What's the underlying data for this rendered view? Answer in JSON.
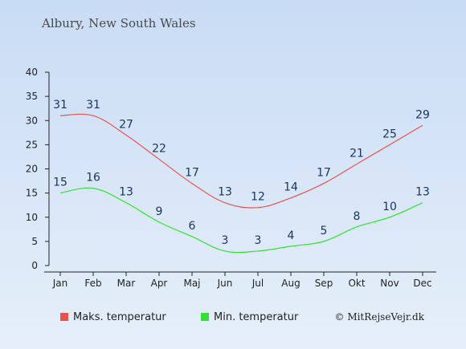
{
  "title": "Albury, New South Wales",
  "credit": "© MitRejseVejr.dk",
  "colors": {
    "max": "#e8534f",
    "min": "#33e033",
    "label": "#1a3560",
    "axis": "#222222"
  },
  "chart_data": {
    "type": "line",
    "title": "Albury, New South Wales",
    "categories": [
      "Jan",
      "Feb",
      "Mar",
      "Apr",
      "Maj",
      "Jun",
      "Jul",
      "Aug",
      "Sep",
      "Okt",
      "Nov",
      "Dec"
    ],
    "yticks": [
      "0",
      "5",
      "10",
      "15",
      "20",
      "25",
      "30",
      "35",
      "40"
    ],
    "ylim": [
      0,
      40
    ],
    "grid": false,
    "legend_position": "bottom-left",
    "series": [
      {
        "name": "Maks. temperatur",
        "color": "#e8534f",
        "values": [
          31,
          31,
          27,
          22,
          17,
          13,
          12,
          14,
          17,
          21,
          25,
          29
        ]
      },
      {
        "name": "Min. temperatur",
        "color": "#33e033",
        "values": [
          15,
          16,
          13,
          9,
          6,
          3,
          3,
          4,
          5,
          8,
          10,
          13
        ]
      }
    ]
  }
}
